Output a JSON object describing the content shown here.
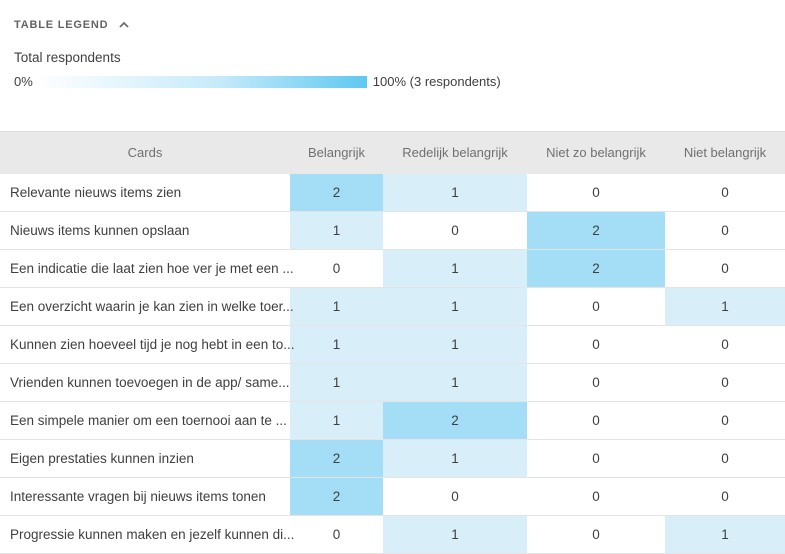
{
  "legend": {
    "title": "TABLE LEGEND",
    "metric_label": "Total respondents",
    "scale_min_label": "0%",
    "scale_max_label": "100% (3 respondents)"
  },
  "colors": {
    "value0": "#ffffff",
    "value1": "#d8effa",
    "value2": "#a3def6",
    "bar_gradient_start": "#fdfeff",
    "bar_gradient_end": "#5ec8f0",
    "header_background": "#e9e9e9"
  },
  "table": {
    "columns": [
      "Cards",
      "Belangrijk",
      "Redelijk belangrijk",
      "Niet zo belangrijk",
      "Niet belangrijk"
    ],
    "rows": [
      {
        "label": "Relevante nieuws items zien",
        "values": [
          2,
          1,
          0,
          0
        ]
      },
      {
        "label": "Nieuws items kunnen opslaan",
        "values": [
          1,
          0,
          2,
          0
        ]
      },
      {
        "label": "Een indicatie die laat zien hoe ver je met een ...",
        "values": [
          0,
          1,
          2,
          0
        ]
      },
      {
        "label": "Een overzicht waarin je kan zien in welke toer...",
        "values": [
          1,
          1,
          0,
          1
        ]
      },
      {
        "label": "Kunnen zien hoeveel tijd je nog hebt in een to...",
        "values": [
          1,
          1,
          0,
          0
        ]
      },
      {
        "label": "Vrienden kunnen toevoegen in de app/ same...",
        "values": [
          1,
          1,
          0,
          0
        ]
      },
      {
        "label": "Een simpele manier om een toernooi aan te ...",
        "values": [
          1,
          2,
          0,
          0
        ]
      },
      {
        "label": "Eigen prestaties kunnen inzien",
        "values": [
          2,
          1,
          0,
          0
        ]
      },
      {
        "label": "Interessante vragen bij nieuws items tonen",
        "values": [
          2,
          0,
          0,
          0
        ]
      },
      {
        "label": "Progressie kunnen maken en jezelf kunnen di...",
        "values": [
          0,
          1,
          0,
          1
        ]
      }
    ]
  }
}
